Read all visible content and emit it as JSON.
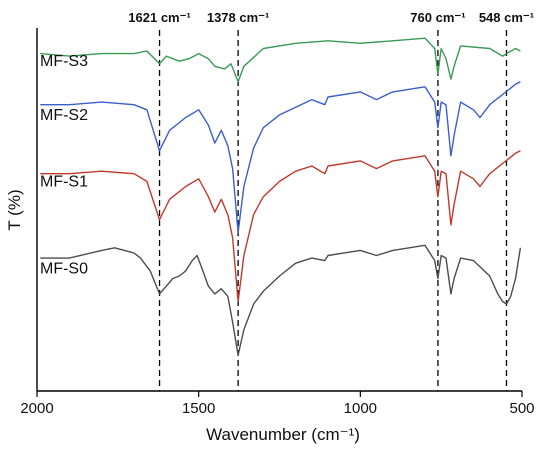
{
  "chart_data": {
    "type": "line",
    "xlabel": "Wavenumber (cm⁻¹)",
    "ylabel": "T (%)",
    "xlim": [
      2000,
      500
    ],
    "x_reversed": true,
    "xticks": [
      2000,
      1500,
      1000,
      500
    ],
    "xtick_labels": [
      "2000",
      "1500",
      "1000",
      "500"
    ],
    "yticks_shown": false,
    "grid": false,
    "reference_lines": [
      {
        "x": 1621,
        "label": "1621 cm⁻¹"
      },
      {
        "x": 1378,
        "label": "1378 cm⁻¹"
      },
      {
        "x": 760,
        "label": "760 cm⁻¹"
      },
      {
        "x": 548,
        "label": "548 cm⁻¹"
      }
    ],
    "series": [
      {
        "name": "MF-S3",
        "color": "#3a9a55",
        "label_y": 87,
        "points": [
          [
            1990,
            90
          ],
          [
            1900,
            89
          ],
          [
            1800,
            90
          ],
          [
            1700,
            90
          ],
          [
            1660,
            91
          ],
          [
            1621,
            86
          ],
          [
            1600,
            89
          ],
          [
            1560,
            87
          ],
          [
            1530,
            88
          ],
          [
            1500,
            90
          ],
          [
            1470,
            88
          ],
          [
            1450,
            85
          ],
          [
            1420,
            84
          ],
          [
            1400,
            86
          ],
          [
            1378,
            79
          ],
          [
            1360,
            85
          ],
          [
            1300,
            92
          ],
          [
            1200,
            94
          ],
          [
            1100,
            95
          ],
          [
            1000,
            94
          ],
          [
            900,
            95
          ],
          [
            800,
            96
          ],
          [
            770,
            92
          ],
          [
            760,
            82
          ],
          [
            750,
            92
          ],
          [
            735,
            88
          ],
          [
            720,
            80
          ],
          [
            710,
            85
          ],
          [
            690,
            93
          ],
          [
            600,
            92
          ],
          [
            560,
            89
          ],
          [
            548,
            90
          ],
          [
            520,
            92
          ],
          [
            505,
            91
          ]
        ]
      },
      {
        "name": "MF-S2",
        "color": "#3a5fcd",
        "label_y": 66,
        "points": [
          [
            1990,
            70
          ],
          [
            1900,
            70
          ],
          [
            1800,
            71
          ],
          [
            1700,
            70
          ],
          [
            1660,
            68
          ],
          [
            1621,
            52
          ],
          [
            1590,
            60
          ],
          [
            1540,
            65
          ],
          [
            1500,
            68
          ],
          [
            1470,
            62
          ],
          [
            1450,
            55
          ],
          [
            1430,
            60
          ],
          [
            1410,
            54
          ],
          [
            1395,
            45
          ],
          [
            1378,
            20
          ],
          [
            1360,
            38
          ],
          [
            1330,
            53
          ],
          [
            1300,
            61
          ],
          [
            1250,
            66
          ],
          [
            1200,
            69
          ],
          [
            1150,
            72
          ],
          [
            1110,
            70
          ],
          [
            1100,
            73
          ],
          [
            1000,
            75
          ],
          [
            950,
            72
          ],
          [
            900,
            75
          ],
          [
            800,
            77
          ],
          [
            770,
            71
          ],
          [
            760,
            61
          ],
          [
            750,
            71
          ],
          [
            735,
            70
          ],
          [
            720,
            50
          ],
          [
            710,
            58
          ],
          [
            690,
            71
          ],
          [
            650,
            68
          ],
          [
            630,
            65
          ],
          [
            600,
            70
          ],
          [
            560,
            74
          ],
          [
            540,
            76
          ],
          [
            520,
            78
          ],
          [
            505,
            79
          ]
        ]
      },
      {
        "name": "MF-S1",
        "color": "#c0392b",
        "label_y": 40,
        "points": [
          [
            1990,
            43
          ],
          [
            1900,
            43
          ],
          [
            1800,
            44
          ],
          [
            1700,
            43
          ],
          [
            1660,
            40
          ],
          [
            1621,
            25
          ],
          [
            1590,
            33
          ],
          [
            1540,
            38
          ],
          [
            1500,
            41
          ],
          [
            1470,
            34
          ],
          [
            1450,
            28
          ],
          [
            1430,
            33
          ],
          [
            1410,
            27
          ],
          [
            1395,
            18
          ],
          [
            1378,
            -7
          ],
          [
            1360,
            11
          ],
          [
            1330,
            27
          ],
          [
            1300,
            34
          ],
          [
            1250,
            40
          ],
          [
            1200,
            44
          ],
          [
            1150,
            46
          ],
          [
            1110,
            43
          ],
          [
            1100,
            46
          ],
          [
            1000,
            48
          ],
          [
            950,
            45
          ],
          [
            900,
            48
          ],
          [
            800,
            50
          ],
          [
            770,
            44
          ],
          [
            760,
            34
          ],
          [
            750,
            44
          ],
          [
            735,
            43
          ],
          [
            720,
            23
          ],
          [
            710,
            31
          ],
          [
            690,
            44
          ],
          [
            650,
            41
          ],
          [
            630,
            38
          ],
          [
            600,
            43
          ],
          [
            560,
            47
          ],
          [
            540,
            49
          ],
          [
            520,
            51
          ],
          [
            505,
            52
          ]
        ]
      },
      {
        "name": "MF-S0",
        "color": "#4d4d4d",
        "label_y": 6,
        "points": [
          [
            1990,
            10
          ],
          [
            1900,
            10
          ],
          [
            1800,
            13
          ],
          [
            1760,
            14
          ],
          [
            1700,
            12
          ],
          [
            1680,
            10
          ],
          [
            1650,
            5
          ],
          [
            1621,
            -4
          ],
          [
            1600,
            -1
          ],
          [
            1580,
            2
          ],
          [
            1560,
            3
          ],
          [
            1540,
            5
          ],
          [
            1520,
            9
          ],
          [
            1505,
            11
          ],
          [
            1490,
            6
          ],
          [
            1470,
            -1
          ],
          [
            1450,
            -4
          ],
          [
            1430,
            -2
          ],
          [
            1410,
            -5
          ],
          [
            1395,
            -15
          ],
          [
            1378,
            -28
          ],
          [
            1360,
            -18
          ],
          [
            1330,
            -8
          ],
          [
            1300,
            -3
          ],
          [
            1250,
            3
          ],
          [
            1200,
            8
          ],
          [
            1150,
            10
          ],
          [
            1110,
            9
          ],
          [
            1100,
            11
          ],
          [
            1000,
            13
          ],
          [
            950,
            11
          ],
          [
            900,
            13
          ],
          [
            800,
            15
          ],
          [
            770,
            9
          ],
          [
            760,
            2
          ],
          [
            750,
            11
          ],
          [
            735,
            10
          ],
          [
            720,
            -4
          ],
          [
            710,
            2
          ],
          [
            690,
            10
          ],
          [
            650,
            9
          ],
          [
            600,
            3
          ],
          [
            575,
            -4
          ],
          [
            560,
            -7
          ],
          [
            548,
            -8
          ],
          [
            535,
            -5
          ],
          [
            520,
            2
          ],
          [
            505,
            14
          ]
        ]
      }
    ]
  }
}
